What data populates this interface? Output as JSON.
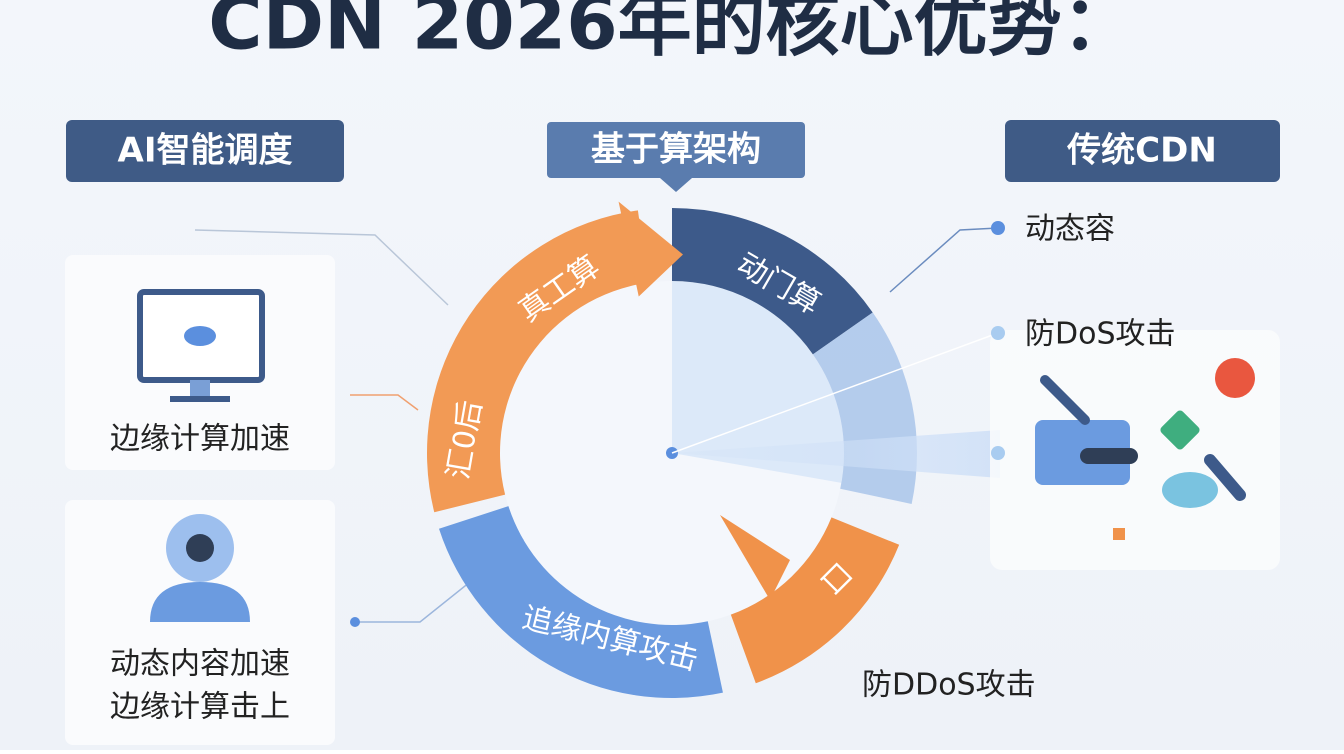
{
  "title": "CDN 2026年的核心优势：",
  "headers": [
    "AI智能调度",
    "基于算架构",
    "传统CDN"
  ],
  "left_cards": {
    "first": "边缘计算加速",
    "second": [
      "动态内容加速",
      "边缘计算击上"
    ]
  },
  "ring_labels": [
    "真工算",
    "动门算",
    "汇0后",
    "口",
    "追缘内算攻击"
  ],
  "right_labels": [
    "动态容",
    "防DoS攻击",
    "防DDoS攻击"
  ]
}
